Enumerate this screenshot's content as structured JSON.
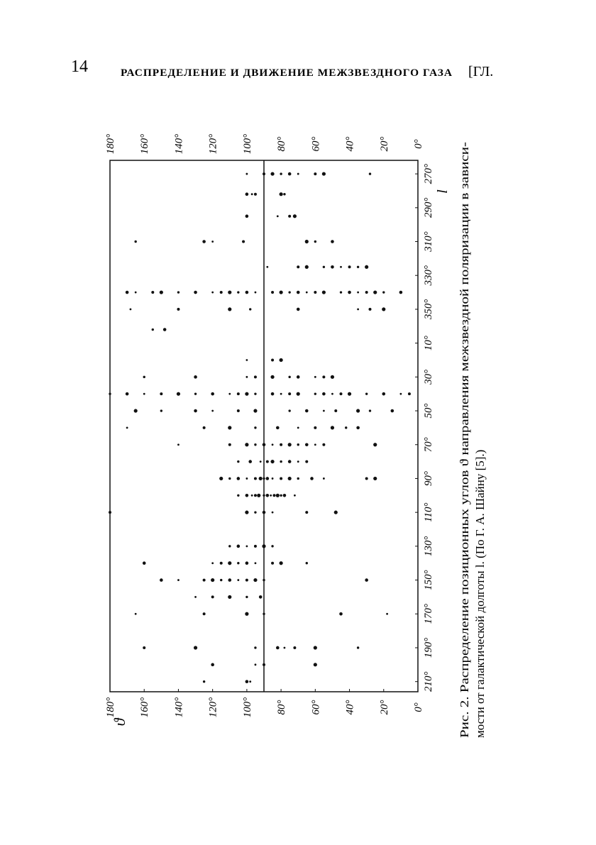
{
  "header": {
    "page_number": "14",
    "title": "РАСПРЕДЕЛЕНИЕ И ДВИЖЕНИЕ МЕЖЗВЕЗДНОГО ГАЗА",
    "chapter": "[ГЛ."
  },
  "chart_data": {
    "type": "scatter",
    "x_label": "l",
    "y_label": "ϑ",
    "caption": [
      "Рис. 2. Распределение позиционных углов ϑ направления межзвездной поляризации в зависи-",
      "мости от галактической долготы l. (По Г. А. Шайну [5].)"
    ],
    "color": "#111",
    "xlim": [
      262,
      576
    ],
    "xticks": [
      {
        "value": 270,
        "label": "270°"
      },
      {
        "value": 290,
        "label": "290°"
      },
      {
        "value": 310,
        "label": "310°"
      },
      {
        "value": 330,
        "label": "330°"
      },
      {
        "value": 350,
        "label": "350°"
      },
      {
        "value": 370,
        "label": "10°"
      },
      {
        "value": 390,
        "label": "30°"
      },
      {
        "value": 410,
        "label": "50°"
      },
      {
        "value": 430,
        "label": "70°"
      },
      {
        "value": 450,
        "label": "90°"
      },
      {
        "value": 470,
        "label": "110°"
      },
      {
        "value": 490,
        "label": "130°"
      },
      {
        "value": 510,
        "label": "150°"
      },
      {
        "value": 530,
        "label": "170°"
      },
      {
        "value": 550,
        "label": "190°"
      },
      {
        "value": 570,
        "label": "210°"
      }
    ],
    "ylim": [
      0,
      180
    ],
    "yticks": [
      {
        "value": 0,
        "label": "0°"
      },
      {
        "value": 20,
        "label": "20°"
      },
      {
        "value": 40,
        "label": "40°"
      },
      {
        "value": 60,
        "label": "60°"
      },
      {
        "value": 80,
        "label": "80°"
      },
      {
        "value": 100,
        "label": "100°"
      },
      {
        "value": 120,
        "label": "120°"
      },
      {
        "value": 140,
        "label": "140°"
      },
      {
        "value": 160,
        "label": "160°"
      },
      {
        "value": 180,
        "label": "180°"
      }
    ],
    "hline": 90,
    "x": [
      270,
      270,
      270,
      270,
      270,
      270,
      270,
      270,
      270,
      282,
      282,
      282,
      282,
      282,
      295,
      295,
      295,
      295,
      310,
      310,
      310,
      310,
      310,
      310,
      310,
      325,
      325,
      325,
      325,
      325,
      325,
      325,
      325,
      325,
      340,
      340,
      340,
      340,
      340,
      340,
      340,
      340,
      340,
      340,
      340,
      340,
      340,
      340,
      340,
      340,
      340,
      340,
      340,
      340,
      340,
      340,
      340,
      340,
      340,
      340,
      350,
      350,
      350,
      350,
      350,
      350,
      350,
      350,
      362,
      362,
      380,
      380,
      380,
      390,
      390,
      390,
      390,
      390,
      390,
      390,
      390,
      390,
      390,
      400,
      400,
      400,
      400,
      400,
      400,
      400,
      400,
      400,
      400,
      400,
      400,
      400,
      400,
      400,
      400,
      400,
      400,
      400,
      400,
      400,
      400,
      400,
      400,
      410,
      410,
      410,
      410,
      410,
      410,
      410,
      410,
      410,
      410,
      410,
      410,
      410,
      420,
      420,
      420,
      420,
      420,
      420,
      420,
      420,
      420,
      420,
      430,
      430,
      430,
      430,
      430,
      430,
      430,
      430,
      430,
      430,
      430,
      430,
      430,
      440,
      440,
      440,
      440,
      440,
      440,
      440,
      440,
      440,
      450,
      450,
      450,
      450,
      450,
      450,
      450,
      450,
      450,
      450,
      450,
      450,
      450,
      450,
      450,
      450,
      460,
      460,
      460,
      460,
      460,
      460,
      460,
      460,
      460,
      460,
      460,
      460,
      460,
      470,
      470,
      470,
      470,
      470,
      470,
      470,
      490,
      490,
      490,
      490,
      490,
      490,
      500,
      500,
      500,
      500,
      500,
      500,
      500,
      500,
      500,
      500,
      510,
      510,
      510,
      510,
      510,
      510,
      510,
      510,
      510,
      510,
      510,
      520,
      520,
      520,
      520,
      520,
      530,
      530,
      530,
      530,
      530,
      530,
      550,
      550,
      550,
      550,
      550,
      550,
      550,
      550,
      560,
      560,
      560,
      560,
      570,
      570,
      570
    ],
    "values": [
      100,
      90,
      85,
      80,
      75,
      70,
      60,
      55,
      28,
      100,
      97,
      95,
      80,
      78,
      100,
      82,
      75,
      72,
      165,
      125,
      120,
      102,
      65,
      60,
      50,
      88,
      70,
      65,
      55,
      50,
      45,
      40,
      30,
      35,
      170,
      165,
      155,
      150,
      140,
      130,
      120,
      115,
      110,
      105,
      100,
      95,
      85,
      80,
      75,
      70,
      65,
      60,
      55,
      45,
      40,
      35,
      30,
      25,
      20,
      10,
      168,
      140,
      110,
      98,
      70,
      35,
      28,
      20,
      155,
      148,
      100,
      85,
      80,
      160,
      130,
      100,
      95,
      85,
      75,
      70,
      60,
      55,
      50,
      180,
      170,
      160,
      150,
      140,
      130,
      120,
      110,
      105,
      100,
      95,
      85,
      80,
      75,
      70,
      60,
      55,
      50,
      45,
      40,
      30,
      20,
      10,
      5,
      165,
      150,
      130,
      120,
      105,
      95,
      75,
      65,
      55,
      48,
      35,
      28,
      15,
      170,
      125,
      110,
      95,
      82,
      70,
      60,
      50,
      42,
      35,
      140,
      110,
      100,
      95,
      90,
      85,
      80,
      75,
      70,
      65,
      60,
      55,
      25,
      105,
      98,
      92,
      88,
      85,
      80,
      75,
      70,
      65,
      115,
      110,
      105,
      100,
      95,
      92,
      90,
      88,
      85,
      80,
      75,
      70,
      62,
      55,
      30,
      25,
      105,
      100,
      97,
      95,
      93,
      90,
      88,
      86,
      84,
      82,
      80,
      78,
      72,
      180,
      100,
      95,
      90,
      85,
      65,
      48,
      110,
      105,
      100,
      95,
      90,
      85,
      160,
      120,
      115,
      110,
      105,
      100,
      95,
      85,
      80,
      65,
      150,
      140,
      125,
      120,
      115,
      110,
      105,
      100,
      95,
      90,
      30,
      130,
      120,
      110,
      100,
      92,
      165,
      125,
      100,
      90,
      45,
      18,
      160,
      130,
      95,
      82,
      78,
      72,
      60,
      35,
      120,
      95,
      90,
      60,
      125,
      100,
      98
    ]
  }
}
